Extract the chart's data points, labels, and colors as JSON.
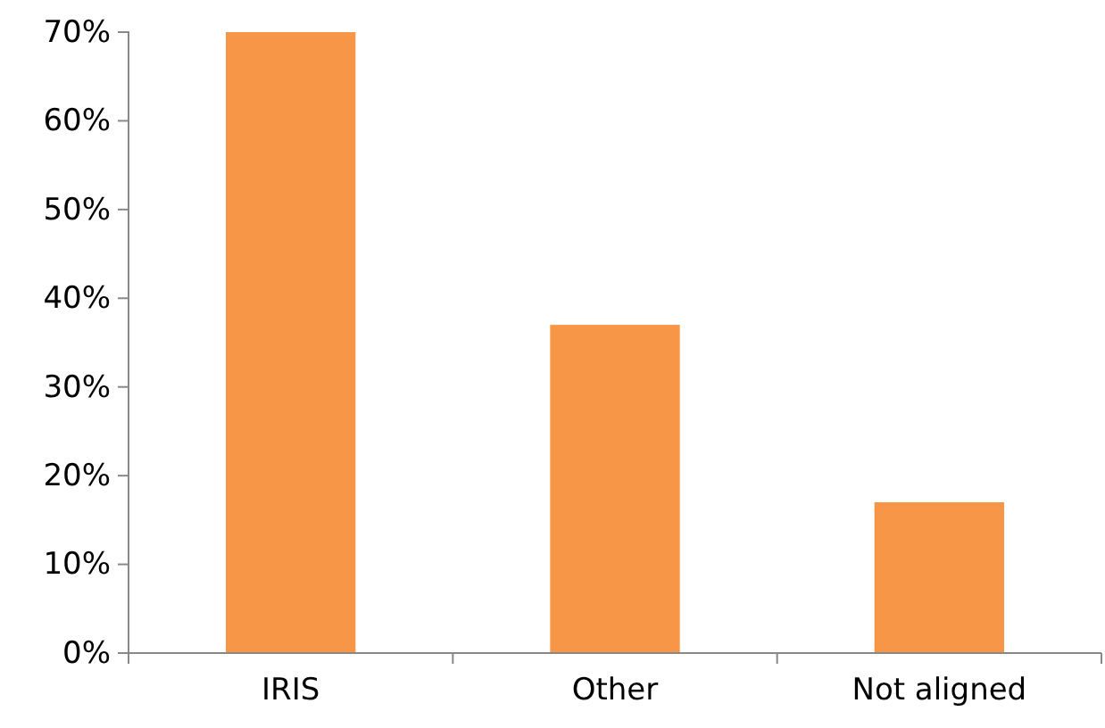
{
  "chart_data": {
    "type": "bar",
    "categories": [
      "IRIS",
      "Other",
      "Not aligned"
    ],
    "values": [
      70,
      37,
      17
    ],
    "color": "#f79646",
    "ylim": [
      0,
      70
    ],
    "yticks": [
      {
        "value": 0,
        "label": "0%"
      },
      {
        "value": 10,
        "label": "10%"
      },
      {
        "value": 20,
        "label": "20%"
      },
      {
        "value": 30,
        "label": "30%"
      },
      {
        "value": 40,
        "label": "40%"
      },
      {
        "value": 50,
        "label": "50%"
      },
      {
        "value": 60,
        "label": "60%"
      },
      {
        "value": 70,
        "label": "70%"
      }
    ],
    "grid": false
  }
}
